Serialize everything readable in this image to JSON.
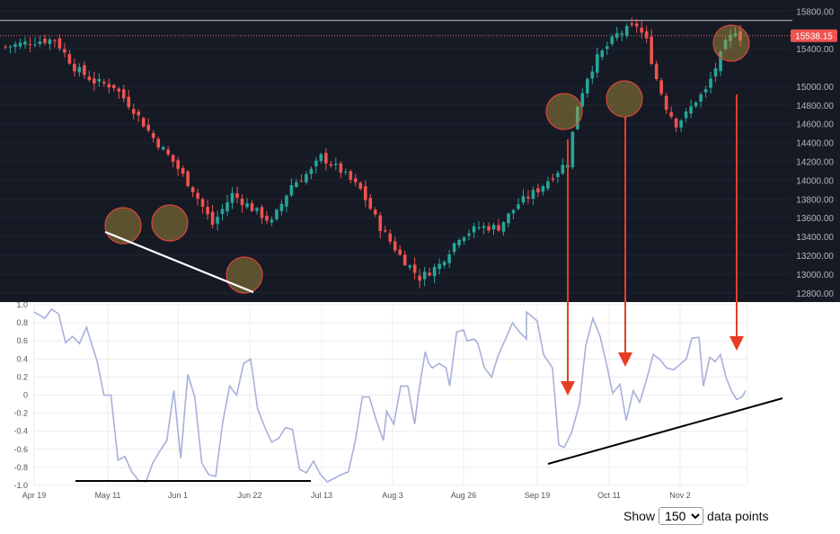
{
  "chart_data": [
    {
      "type": "candlestick",
      "name": "",
      "y_ticks": [
        "15800.00",
        "15400.00",
        "15000.00",
        "14800.00",
        "14600.00",
        "14400.00",
        "14200.00",
        "14000.00",
        "13800.00",
        "13600.00",
        "13400.00",
        "13200.00",
        "13000.00",
        "12800.00"
      ],
      "ylim": [
        12760,
        15880
      ],
      "last_price": "15538.15",
      "horizontal_level": 15700,
      "colors": {
        "background": "#161a25",
        "up": "#26a69a",
        "down": "#ef5350",
        "text": "#b2b5be",
        "level": "#c8cad0",
        "last_price_line": "#ef5350"
      },
      "n_bars": 150
    },
    {
      "type": "line",
      "x_ticks": [
        "Apr 19",
        "May 11",
        "Jun 1",
        "Jun 22",
        "Jul 13",
        "Aug 3",
        "Aug 26",
        "Sep 19",
        "Oct 11",
        "Nov 2"
      ],
      "y_ticks": [
        "1.0",
        "0.8",
        "0.6",
        "0.4",
        "0.2",
        "0",
        "-0.2",
        "-0.4",
        "-0.6",
        "-0.8",
        "-1.0"
      ],
      "ylim": [
        -1.0,
        1.0
      ],
      "colors": {
        "line": "#a7b0db",
        "grid": "#ececec"
      },
      "key_points": [
        [
          0,
          0.92
        ],
        [
          3,
          0.85
        ],
        [
          5,
          0.95
        ],
        [
          7,
          0.9
        ],
        [
          9,
          0.58
        ],
        [
          11,
          0.65
        ],
        [
          13,
          0.57
        ],
        [
          15,
          0.75
        ],
        [
          17,
          0.5
        ],
        [
          18,
          0.38
        ],
        [
          20,
          0.0
        ],
        [
          22,
          0.0
        ],
        [
          24,
          -0.72
        ],
        [
          26,
          -0.68
        ],
        [
          28,
          -0.85
        ],
        [
          30,
          -0.95
        ],
        [
          32,
          -0.96
        ],
        [
          34,
          -0.75
        ],
        [
          36,
          -0.62
        ],
        [
          38,
          -0.5
        ],
        [
          40,
          0.05
        ],
        [
          42,
          -0.7
        ],
        [
          44,
          0.23
        ],
        [
          46,
          -0.02
        ],
        [
          48,
          -0.75
        ],
        [
          50,
          -0.88
        ],
        [
          52,
          -0.9
        ],
        [
          54,
          -0.3
        ],
        [
          56,
          0.1
        ],
        [
          58,
          0.0
        ],
        [
          60,
          0.35
        ],
        [
          62,
          0.4
        ],
        [
          64,
          -0.15
        ],
        [
          66,
          -0.35
        ],
        [
          68,
          -0.52
        ],
        [
          70,
          -0.48
        ],
        [
          72,
          -0.36
        ],
        [
          74,
          -0.38
        ],
        [
          76,
          -0.82
        ],
        [
          78,
          -0.86
        ],
        [
          80,
          -0.73
        ],
        [
          82,
          -0.88
        ],
        [
          84,
          -0.96
        ],
        [
          86,
          -0.92
        ],
        [
          88,
          -0.88
        ],
        [
          90,
          -0.85
        ],
        [
          92,
          -0.5
        ],
        [
          94,
          -0.02
        ],
        [
          96,
          -0.02
        ],
        [
          98,
          -0.28
        ],
        [
          100,
          -0.5
        ],
        [
          101,
          -0.18
        ],
        [
          103,
          -0.32
        ],
        [
          105,
          0.1
        ],
        [
          107,
          0.1
        ],
        [
          109,
          -0.32
        ],
        [
          110,
          0.0
        ],
        [
          112,
          0.48
        ],
        [
          113,
          0.35
        ],
        [
          114,
          0.3
        ],
        [
          116,
          0.35
        ],
        [
          118,
          0.3
        ],
        [
          119,
          0.1
        ],
        [
          121,
          0.7
        ],
        [
          123,
          0.72
        ],
        [
          124,
          0.6
        ],
        [
          126,
          0.62
        ],
        [
          127,
          0.58
        ],
        [
          129,
          0.3
        ],
        [
          131,
          0.2
        ],
        [
          133,
          0.45
        ],
        [
          135,
          0.62
        ],
        [
          137,
          0.8
        ],
        [
          139,
          0.7
        ],
        [
          141,
          0.62
        ]
      ]
    }
  ],
  "footer": {
    "show_label": "Show",
    "points_value": "150",
    "data_points_label": "data points"
  }
}
